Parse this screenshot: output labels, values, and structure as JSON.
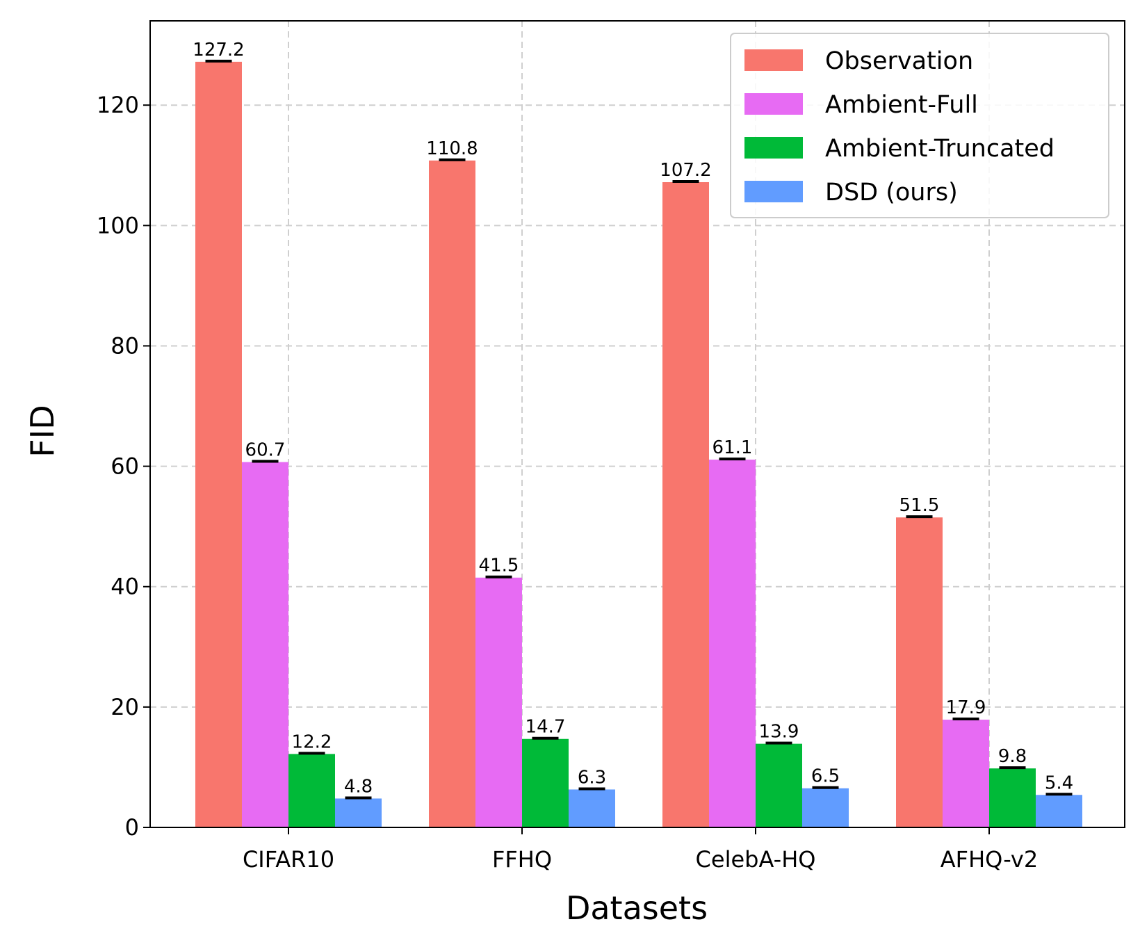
{
  "chart_data": {
    "type": "bar",
    "title": "",
    "xlabel": "Datasets",
    "ylabel": "FID",
    "categories": [
      "CIFAR10",
      "FFHQ",
      "CelebA-HQ",
      "AFHQ-v2"
    ],
    "series": [
      {
        "name": "Observation",
        "color": "#f8766d",
        "values": [
          127.2,
          110.8,
          107.2,
          51.5
        ],
        "labels": [
          "127.2",
          "110.8",
          "107.2",
          "51.5"
        ]
      },
      {
        "name": "Ambient-Full",
        "color": "#e76bf3",
        "values": [
          60.7,
          41.5,
          61.1,
          17.9
        ],
        "labels": [
          "60.7",
          "41.5",
          "61.1",
          "17.9"
        ]
      },
      {
        "name": "Ambient-Truncated",
        "color": "#00ba38",
        "values": [
          12.2,
          14.7,
          13.9,
          9.8
        ],
        "labels": [
          "12.2",
          "14.7",
          "13.9",
          "9.8"
        ]
      },
      {
        "name": "DSD (ours)",
        "color": "#619cff",
        "values": [
          4.8,
          6.3,
          6.5,
          5.4
        ],
        "labels": [
          "4.8",
          "6.3",
          "6.5",
          "5.4"
        ]
      }
    ],
    "ylim": [
      0,
      134
    ],
    "yticks": [
      0,
      20,
      40,
      60,
      80,
      100,
      120
    ],
    "ytick_labels": [
      "0",
      "20",
      "40",
      "60",
      "80",
      "100",
      "120"
    ],
    "grid": true,
    "error_bars": true,
    "legend_position": "top-right"
  }
}
